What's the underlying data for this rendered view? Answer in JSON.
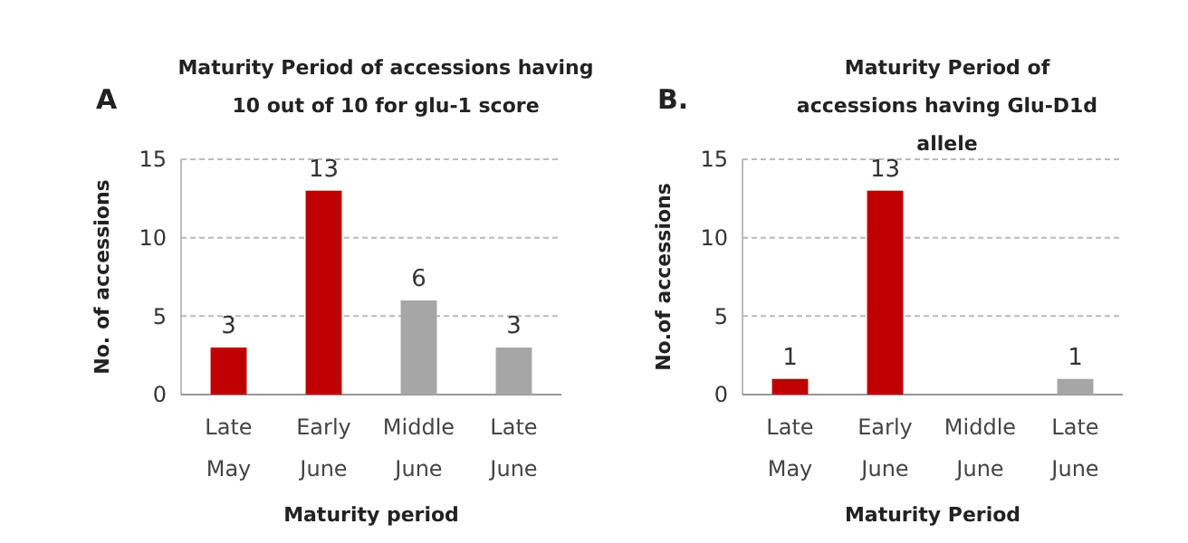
{
  "chart_data": [
    {
      "type": "bar",
      "title": "Maturity Period of accessions having 10 out of 10 for glu-1 score",
      "xlabel": "Maturity period",
      "ylabel": "No. of accessions",
      "annotations": [
        "A"
      ],
      "categories": [
        "Late May",
        "Early June",
        "Middle June",
        "Late June"
      ],
      "values": [
        3,
        13,
        6,
        3
      ],
      "colors": [
        "#c00000",
        "#c00000",
        "#a6a6a6",
        "#a6a6a6"
      ],
      "ylim": [
        0,
        15
      ],
      "yticks": [
        0,
        5,
        10,
        15
      ],
      "grid": "y",
      "data_labels": true
    },
    {
      "type": "bar",
      "title": "Maturity Period of accessions having Glu-D1d allele",
      "xlabel": "Maturity Period",
      "ylabel": "No.of accessions",
      "annotations": [
        "B."
      ],
      "categories": [
        "Late May",
        "Early June",
        "Middle June",
        "Late June"
      ],
      "values": [
        1,
        13,
        0,
        1
      ],
      "value_labels": [
        "1",
        "13",
        null,
        "1"
      ],
      "colors": [
        "#c00000",
        "#c00000",
        "#a6a6a6",
        "#a6a6a6"
      ],
      "ylim": [
        0,
        15
      ],
      "yticks": [
        0,
        5,
        10,
        15
      ],
      "grid": "y"
    }
  ]
}
